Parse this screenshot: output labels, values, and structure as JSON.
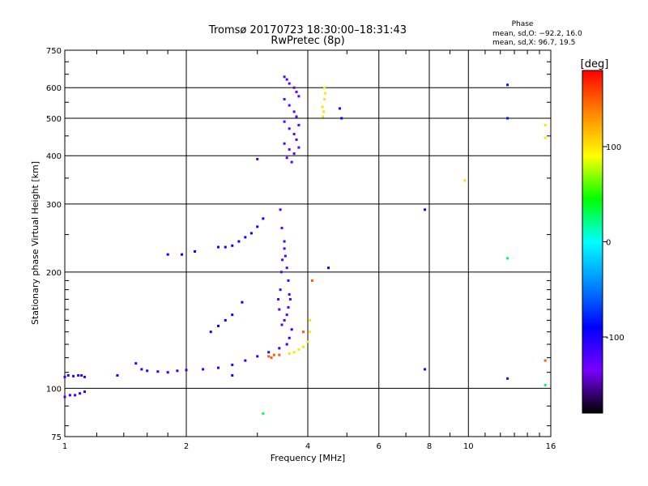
{
  "chart_data": {
    "type": "scatter",
    "title": "Tromsø 20170723 18:30:00–18:31:43",
    "subtitle": "RwPretec (8p)",
    "xlabel": "Frequency [MHz]",
    "ylabel": "Stationary phase Virtual Height [km]",
    "x_scale": "log",
    "y_scale": "log",
    "xlim": [
      1,
      16
    ],
    "ylim": [
      75,
      750
    ],
    "x_ticks": [
      1,
      2,
      4,
      6,
      8,
      10,
      16
    ],
    "y_ticks": [
      75,
      100,
      200,
      300,
      400,
      500,
      600,
      750
    ],
    "grid": true,
    "info": {
      "heading": "Phase",
      "line1": "mean, sd,O: −92.2, 16.0",
      "line2": "mean, sd,X:  96.7, 19.5"
    },
    "colorbar": {
      "label": "[deg]",
      "range": [
        -180,
        180
      ],
      "ticks": [
        100,
        0,
        -100
      ],
      "colors": [
        "#ff0000",
        "#ff8800",
        "#ffff00",
        "#00ff00",
        "#00ffff",
        "#0088ff",
        "#0000ff",
        "#7700ff",
        "#000000"
      ]
    },
    "series": [
      {
        "phase": -110,
        "points": [
          [
            1.0,
            107
          ],
          [
            1.02,
            108
          ],
          [
            1.05,
            107.5
          ],
          [
            1.08,
            108
          ],
          [
            1.1,
            108
          ],
          [
            1.12,
            107
          ],
          [
            1.0,
            95
          ],
          [
            1.03,
            96
          ],
          [
            1.06,
            96
          ],
          [
            1.09,
            97
          ],
          [
            1.12,
            98
          ]
        ]
      },
      {
        "phase": -105,
        "points": [
          [
            1.5,
            116
          ],
          [
            1.55,
            112
          ],
          [
            1.6,
            111
          ],
          [
            1.7,
            110.5
          ],
          [
            1.8,
            110
          ],
          [
            1.9,
            111
          ],
          [
            2.0,
            111.5
          ],
          [
            2.2,
            112
          ],
          [
            2.4,
            113
          ],
          [
            2.6,
            115
          ],
          [
            2.8,
            118
          ],
          [
            3.0,
            121
          ],
          [
            3.2,
            124
          ],
          [
            3.4,
            127
          ],
          [
            3.55,
            130
          ],
          [
            3.6,
            135
          ],
          [
            3.65,
            142
          ]
        ]
      },
      {
        "phase": -95,
        "points": [
          [
            2.4,
            232
          ],
          [
            2.5,
            232
          ],
          [
            2.6,
            234
          ],
          [
            2.7,
            240
          ],
          [
            2.8,
            246
          ],
          [
            2.9,
            252
          ],
          [
            3.0,
            262
          ],
          [
            3.1,
            275
          ],
          [
            2.75,
            167
          ],
          [
            2.3,
            140
          ],
          [
            2.4,
            145
          ],
          [
            2.5,
            150
          ],
          [
            2.6,
            155
          ],
          [
            1.8,
            222
          ],
          [
            1.95,
            222
          ],
          [
            2.1,
            226
          ],
          [
            4.5,
            205
          ],
          [
            2.6,
            108
          ],
          [
            1.35,
            108
          ]
        ]
      },
      {
        "phase": -120,
        "points": [
          [
            3.42,
            290
          ],
          [
            3.45,
            260
          ],
          [
            3.5,
            240
          ],
          [
            3.52,
            220
          ],
          [
            3.55,
            205
          ],
          [
            3.58,
            190
          ],
          [
            3.6,
            175
          ],
          [
            3.58,
            162
          ],
          [
            3.55,
            155
          ],
          [
            3.5,
            150
          ],
          [
            3.45,
            146
          ],
          [
            3.4,
            160
          ],
          [
            3.38,
            170
          ],
          [
            3.42,
            180
          ],
          [
            3.44,
            200
          ],
          [
            3.46,
            215
          ],
          [
            3.5,
            230
          ],
          [
            3.62,
            170
          ]
        ]
      },
      {
        "phase": -125,
        "points": [
          [
            3.5,
            640
          ],
          [
            3.55,
            630
          ],
          [
            3.6,
            615
          ],
          [
            3.7,
            600
          ],
          [
            3.75,
            585
          ],
          [
            3.5,
            560
          ],
          [
            3.6,
            540
          ],
          [
            3.7,
            520
          ],
          [
            3.75,
            505
          ],
          [
            3.5,
            490
          ],
          [
            3.6,
            470
          ],
          [
            3.7,
            455
          ],
          [
            3.75,
            440
          ],
          [
            3.5,
            430
          ],
          [
            3.6,
            415
          ],
          [
            3.7,
            405
          ],
          [
            3.55,
            395
          ],
          [
            3.65,
            385
          ],
          [
            3.8,
            570
          ],
          [
            3.8,
            480
          ],
          [
            3.8,
            420
          ]
        ]
      },
      {
        "phase": 100,
        "points": [
          [
            3.6,
            123
          ],
          [
            3.7,
            124
          ],
          [
            3.8,
            126
          ],
          [
            3.9,
            128
          ],
          [
            4.0,
            132
          ],
          [
            4.05,
            140
          ],
          [
            4.05,
            150
          ],
          [
            4.35,
            535
          ],
          [
            4.4,
            560
          ],
          [
            4.42,
            580
          ],
          [
            4.38,
            520
          ],
          [
            4.36,
            505
          ],
          [
            4.4,
            600
          ],
          [
            9.8,
            345
          ],
          [
            15.5,
            445
          ],
          [
            15.5,
            480
          ]
        ]
      },
      {
        "phase": 150,
        "points": [
          [
            3.2,
            121
          ],
          [
            3.25,
            120
          ],
          [
            3.3,
            122
          ],
          [
            3.4,
            122
          ],
          [
            3.9,
            140
          ],
          [
            4.1,
            190
          ],
          [
            15.5,
            118
          ]
        ]
      },
      {
        "phase": -85,
        "points": [
          [
            4.8,
            530
          ],
          [
            4.85,
            500
          ],
          [
            7.8,
            290
          ],
          [
            7.8,
            112
          ],
          [
            12.5,
            610
          ],
          [
            12.5,
            500
          ]
        ]
      },
      {
        "phase": 30,
        "points": [
          [
            3.1,
            86
          ],
          [
            12.5,
            217
          ],
          [
            15.5,
            102
          ]
        ]
      },
      {
        "phase": -150,
        "points": [
          [
            3.0,
            392
          ],
          [
            12.5,
            106
          ]
        ]
      }
    ]
  }
}
